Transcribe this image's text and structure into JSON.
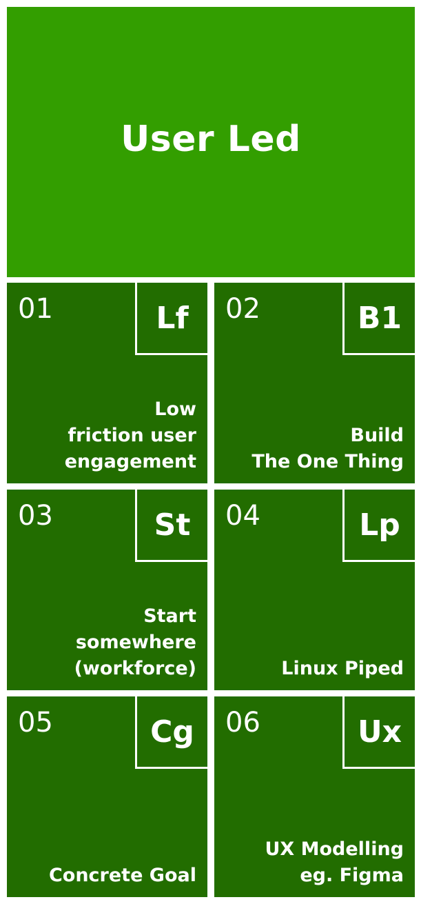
{
  "header": {
    "title": "User Led"
  },
  "colors": {
    "header_bg": "#339e00",
    "tile_bg": "#226d00",
    "text": "#ffffff"
  },
  "tiles": [
    {
      "number": "01",
      "symbol": "Lf",
      "label": "Low\nfriction user\nengagement"
    },
    {
      "number": "02",
      "symbol": "B1",
      "label": "Build\nThe One Thing"
    },
    {
      "number": "03",
      "symbol": "St",
      "label": "Start\nsomewhere\n(workforce)"
    },
    {
      "number": "04",
      "symbol": "Lp",
      "label": "Linux Piped"
    },
    {
      "number": "05",
      "symbol": "Cg",
      "label": "Concrete Goal"
    },
    {
      "number": "06",
      "symbol": "Ux",
      "label": "UX Modelling\neg. Figma"
    }
  ]
}
